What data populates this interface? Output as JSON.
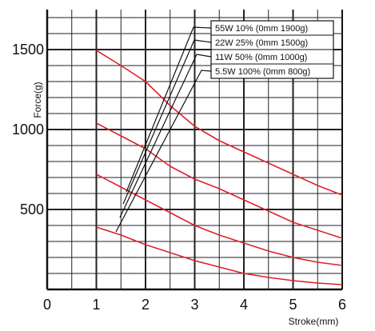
{
  "chart_data": {
    "type": "line",
    "xlabel": "Stroke(mm)",
    "ylabel": "Force(g)",
    "xlim": [
      0,
      6
    ],
    "ylim": [
      0,
      1750
    ],
    "x_ticks": [
      "0",
      "1",
      "2",
      "3",
      "4",
      "5",
      "6"
    ],
    "y_ticks": [
      "500",
      "1000",
      "1500"
    ],
    "grid": true,
    "legend_position": "top-right",
    "line_color": "#e0202a",
    "series": [
      {
        "name": "55W 10% (0mm 1900g)",
        "x": [
          1,
          1.5,
          2,
          2.5,
          3,
          3.5,
          4,
          4.5,
          5,
          5.5,
          6
        ],
        "y": [
          1495,
          1400,
          1300,
          1150,
          1020,
          930,
          860,
          790,
          720,
          650,
          590
        ]
      },
      {
        "name": "22W 25% (0mm 1500g)",
        "x": [
          1,
          1.5,
          2,
          2.5,
          3,
          3.5,
          4,
          4.5,
          5,
          5.5,
          6
        ],
        "y": [
          1040,
          960,
          880,
          770,
          690,
          630,
          560,
          490,
          420,
          370,
          320
        ]
      },
      {
        "name": "11W 50% (0mm 1000g)",
        "x": [
          1,
          1.5,
          2,
          2.5,
          3,
          3.5,
          4,
          4.5,
          5,
          5.5,
          6
        ],
        "y": [
          720,
          640,
          560,
          480,
          400,
          340,
          290,
          240,
          200,
          170,
          150
        ]
      },
      {
        "name": "5.5W 100% (0mm 800g)",
        "x": [
          1,
          1.5,
          2,
          2.5,
          3,
          3.5,
          4,
          4.5,
          5,
          5.5,
          6
        ],
        "y": [
          390,
          340,
          280,
          230,
          180,
          140,
          100,
          75,
          55,
          40,
          30
        ]
      }
    ]
  }
}
